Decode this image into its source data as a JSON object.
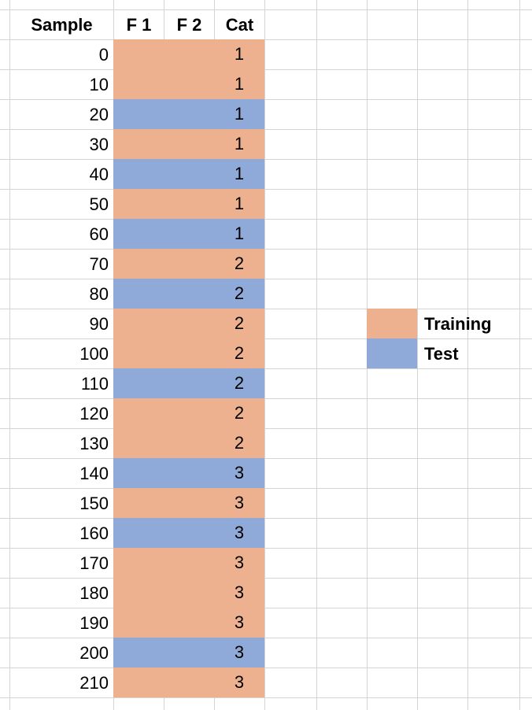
{
  "headers": [
    "Sample",
    "F 1",
    "F 2",
    "Cat"
  ],
  "colors": {
    "training": "#EDB18F",
    "test": "#8FA9D8",
    "grid": "#D4D4D4"
  },
  "rows": [
    {
      "sample": "0",
      "cat": "1",
      "split": "training"
    },
    {
      "sample": "10",
      "cat": "1",
      "split": "training"
    },
    {
      "sample": "20",
      "cat": "1",
      "split": "test"
    },
    {
      "sample": "30",
      "cat": "1",
      "split": "training"
    },
    {
      "sample": "40",
      "cat": "1",
      "split": "test"
    },
    {
      "sample": "50",
      "cat": "1",
      "split": "training"
    },
    {
      "sample": "60",
      "cat": "1",
      "split": "test"
    },
    {
      "sample": "70",
      "cat": "2",
      "split": "training"
    },
    {
      "sample": "80",
      "cat": "2",
      "split": "test"
    },
    {
      "sample": "90",
      "cat": "2",
      "split": "training"
    },
    {
      "sample": "100",
      "cat": "2",
      "split": "training"
    },
    {
      "sample": "110",
      "cat": "2",
      "split": "test"
    },
    {
      "sample": "120",
      "cat": "2",
      "split": "training"
    },
    {
      "sample": "130",
      "cat": "2",
      "split": "training"
    },
    {
      "sample": "140",
      "cat": "3",
      "split": "test"
    },
    {
      "sample": "150",
      "cat": "3",
      "split": "training"
    },
    {
      "sample": "160",
      "cat": "3",
      "split": "test"
    },
    {
      "sample": "170",
      "cat": "3",
      "split": "training"
    },
    {
      "sample": "180",
      "cat": "3",
      "split": "training"
    },
    {
      "sample": "190",
      "cat": "3",
      "split": "training"
    },
    {
      "sample": "200",
      "cat": "3",
      "split": "test"
    },
    {
      "sample": "210",
      "cat": "3",
      "split": "training"
    }
  ],
  "legend": [
    {
      "label": "Training",
      "split": "training"
    },
    {
      "label": "Test",
      "split": "test"
    }
  ]
}
